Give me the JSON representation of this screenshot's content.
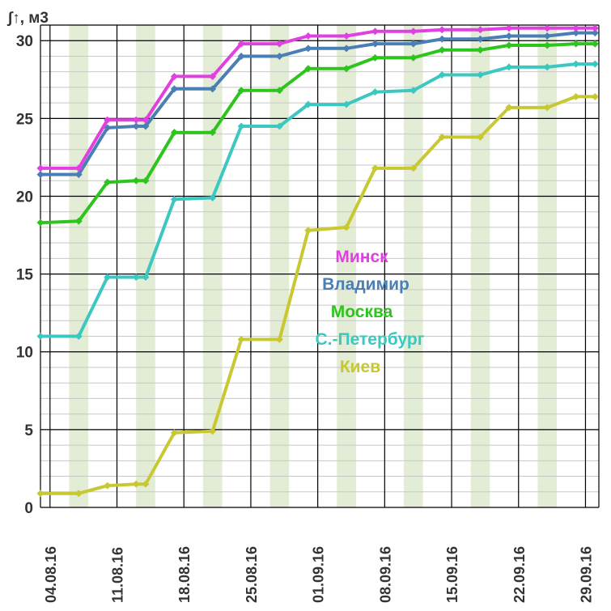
{
  "chart_data": {
    "type": "line",
    "ylabel": "∫↑, м3",
    "ylim": [
      0,
      31
    ],
    "yticks": [
      "0",
      "5",
      "10",
      "15",
      "20",
      "25",
      "30"
    ],
    "xtick_labels": [
      "04.08.16",
      "11.08.16",
      "18.08.16",
      "25.08.16",
      "01.09.16",
      "08.09.16",
      "15.09.16",
      "22.09.16",
      "29.09.16"
    ],
    "grid": true,
    "weekend_shading": true,
    "legend_position": "center",
    "series": [
      {
        "name": "Минск",
        "color": "#e040e0",
        "points": [
          [
            "03.08.16",
            21.8
          ],
          [
            "07.08.16",
            21.8
          ],
          [
            "10.08.16",
            24.9
          ],
          [
            "13.08.16",
            24.9
          ],
          [
            "14.08.16",
            24.9
          ],
          [
            "17.08.16",
            27.7
          ],
          [
            "21.08.16",
            27.7
          ],
          [
            "24.08.16",
            29.8
          ],
          [
            "28.08.16",
            29.8
          ],
          [
            "31.08.16",
            30.3
          ],
          [
            "04.09.16",
            30.3
          ],
          [
            "07.09.16",
            30.6
          ],
          [
            "11.09.16",
            30.6
          ],
          [
            "14.09.16",
            30.7
          ],
          [
            "18.09.16",
            30.7
          ],
          [
            "21.09.16",
            30.8
          ],
          [
            "25.09.16",
            30.8
          ],
          [
            "28.09.16",
            30.8
          ],
          [
            "30.09.16",
            30.8
          ]
        ]
      },
      {
        "name": "Владимир",
        "color": "#4a7fb5",
        "points": [
          [
            "03.08.16",
            21.4
          ],
          [
            "07.08.16",
            21.4
          ],
          [
            "10.08.16",
            24.4
          ],
          [
            "13.08.16",
            24.5
          ],
          [
            "14.08.16",
            24.5
          ],
          [
            "17.08.16",
            26.9
          ],
          [
            "21.08.16",
            26.9
          ],
          [
            "24.08.16",
            29.0
          ],
          [
            "28.08.16",
            29.0
          ],
          [
            "31.08.16",
            29.5
          ],
          [
            "04.09.16",
            29.5
          ],
          [
            "07.09.16",
            29.8
          ],
          [
            "11.09.16",
            29.8
          ],
          [
            "14.09.16",
            30.1
          ],
          [
            "18.09.16",
            30.1
          ],
          [
            "21.09.16",
            30.3
          ],
          [
            "25.09.16",
            30.3
          ],
          [
            "28.09.16",
            30.5
          ],
          [
            "30.09.16",
            30.5
          ]
        ]
      },
      {
        "name": "Москва",
        "color": "#2ec41e",
        "points": [
          [
            "03.08.16",
            18.3
          ],
          [
            "07.08.16",
            18.4
          ],
          [
            "10.08.16",
            20.9
          ],
          [
            "13.08.16",
            21.0
          ],
          [
            "14.08.16",
            21.0
          ],
          [
            "17.08.16",
            24.1
          ],
          [
            "21.08.16",
            24.1
          ],
          [
            "24.08.16",
            26.8
          ],
          [
            "28.08.16",
            26.8
          ],
          [
            "31.08.16",
            28.2
          ],
          [
            "04.09.16",
            28.2
          ],
          [
            "07.09.16",
            28.9
          ],
          [
            "11.09.16",
            28.9
          ],
          [
            "14.09.16",
            29.4
          ],
          [
            "18.09.16",
            29.4
          ],
          [
            "21.09.16",
            29.7
          ],
          [
            "25.09.16",
            29.7
          ],
          [
            "28.09.16",
            29.8
          ],
          [
            "30.09.16",
            29.8
          ]
        ]
      },
      {
        "name": "С.-Петербург",
        "color": "#3cc8c0",
        "points": [
          [
            "03.08.16",
            11.0
          ],
          [
            "07.08.16",
            11.0
          ],
          [
            "10.08.16",
            14.8
          ],
          [
            "13.08.16",
            14.8
          ],
          [
            "14.08.16",
            14.8
          ],
          [
            "17.08.16",
            19.8
          ],
          [
            "21.08.16",
            19.9
          ],
          [
            "24.08.16",
            24.5
          ],
          [
            "28.08.16",
            24.5
          ],
          [
            "31.08.16",
            25.9
          ],
          [
            "04.09.16",
            25.9
          ],
          [
            "07.09.16",
            26.7
          ],
          [
            "11.09.16",
            26.8
          ],
          [
            "14.09.16",
            27.8
          ],
          [
            "18.09.16",
            27.8
          ],
          [
            "21.09.16",
            28.3
          ],
          [
            "25.09.16",
            28.3
          ],
          [
            "28.09.16",
            28.5
          ],
          [
            "30.09.16",
            28.5
          ]
        ]
      },
      {
        "name": "Киев",
        "color": "#c8c832",
        "points": [
          [
            "03.08.16",
            0.9
          ],
          [
            "07.08.16",
            0.9
          ],
          [
            "10.08.16",
            1.4
          ],
          [
            "13.08.16",
            1.5
          ],
          [
            "14.08.16",
            1.5
          ],
          [
            "17.08.16",
            4.8
          ],
          [
            "21.08.16",
            4.9
          ],
          [
            "24.08.16",
            10.8
          ],
          [
            "28.08.16",
            10.8
          ],
          [
            "31.08.16",
            17.8
          ],
          [
            "04.09.16",
            18.0
          ],
          [
            "07.09.16",
            21.8
          ],
          [
            "11.09.16",
            21.8
          ],
          [
            "14.09.16",
            23.8
          ],
          [
            "18.09.16",
            23.8
          ],
          [
            "21.09.16",
            25.7
          ],
          [
            "25.09.16",
            25.7
          ],
          [
            "28.09.16",
            26.4
          ],
          [
            "30.09.16",
            26.4
          ]
        ]
      }
    ]
  }
}
